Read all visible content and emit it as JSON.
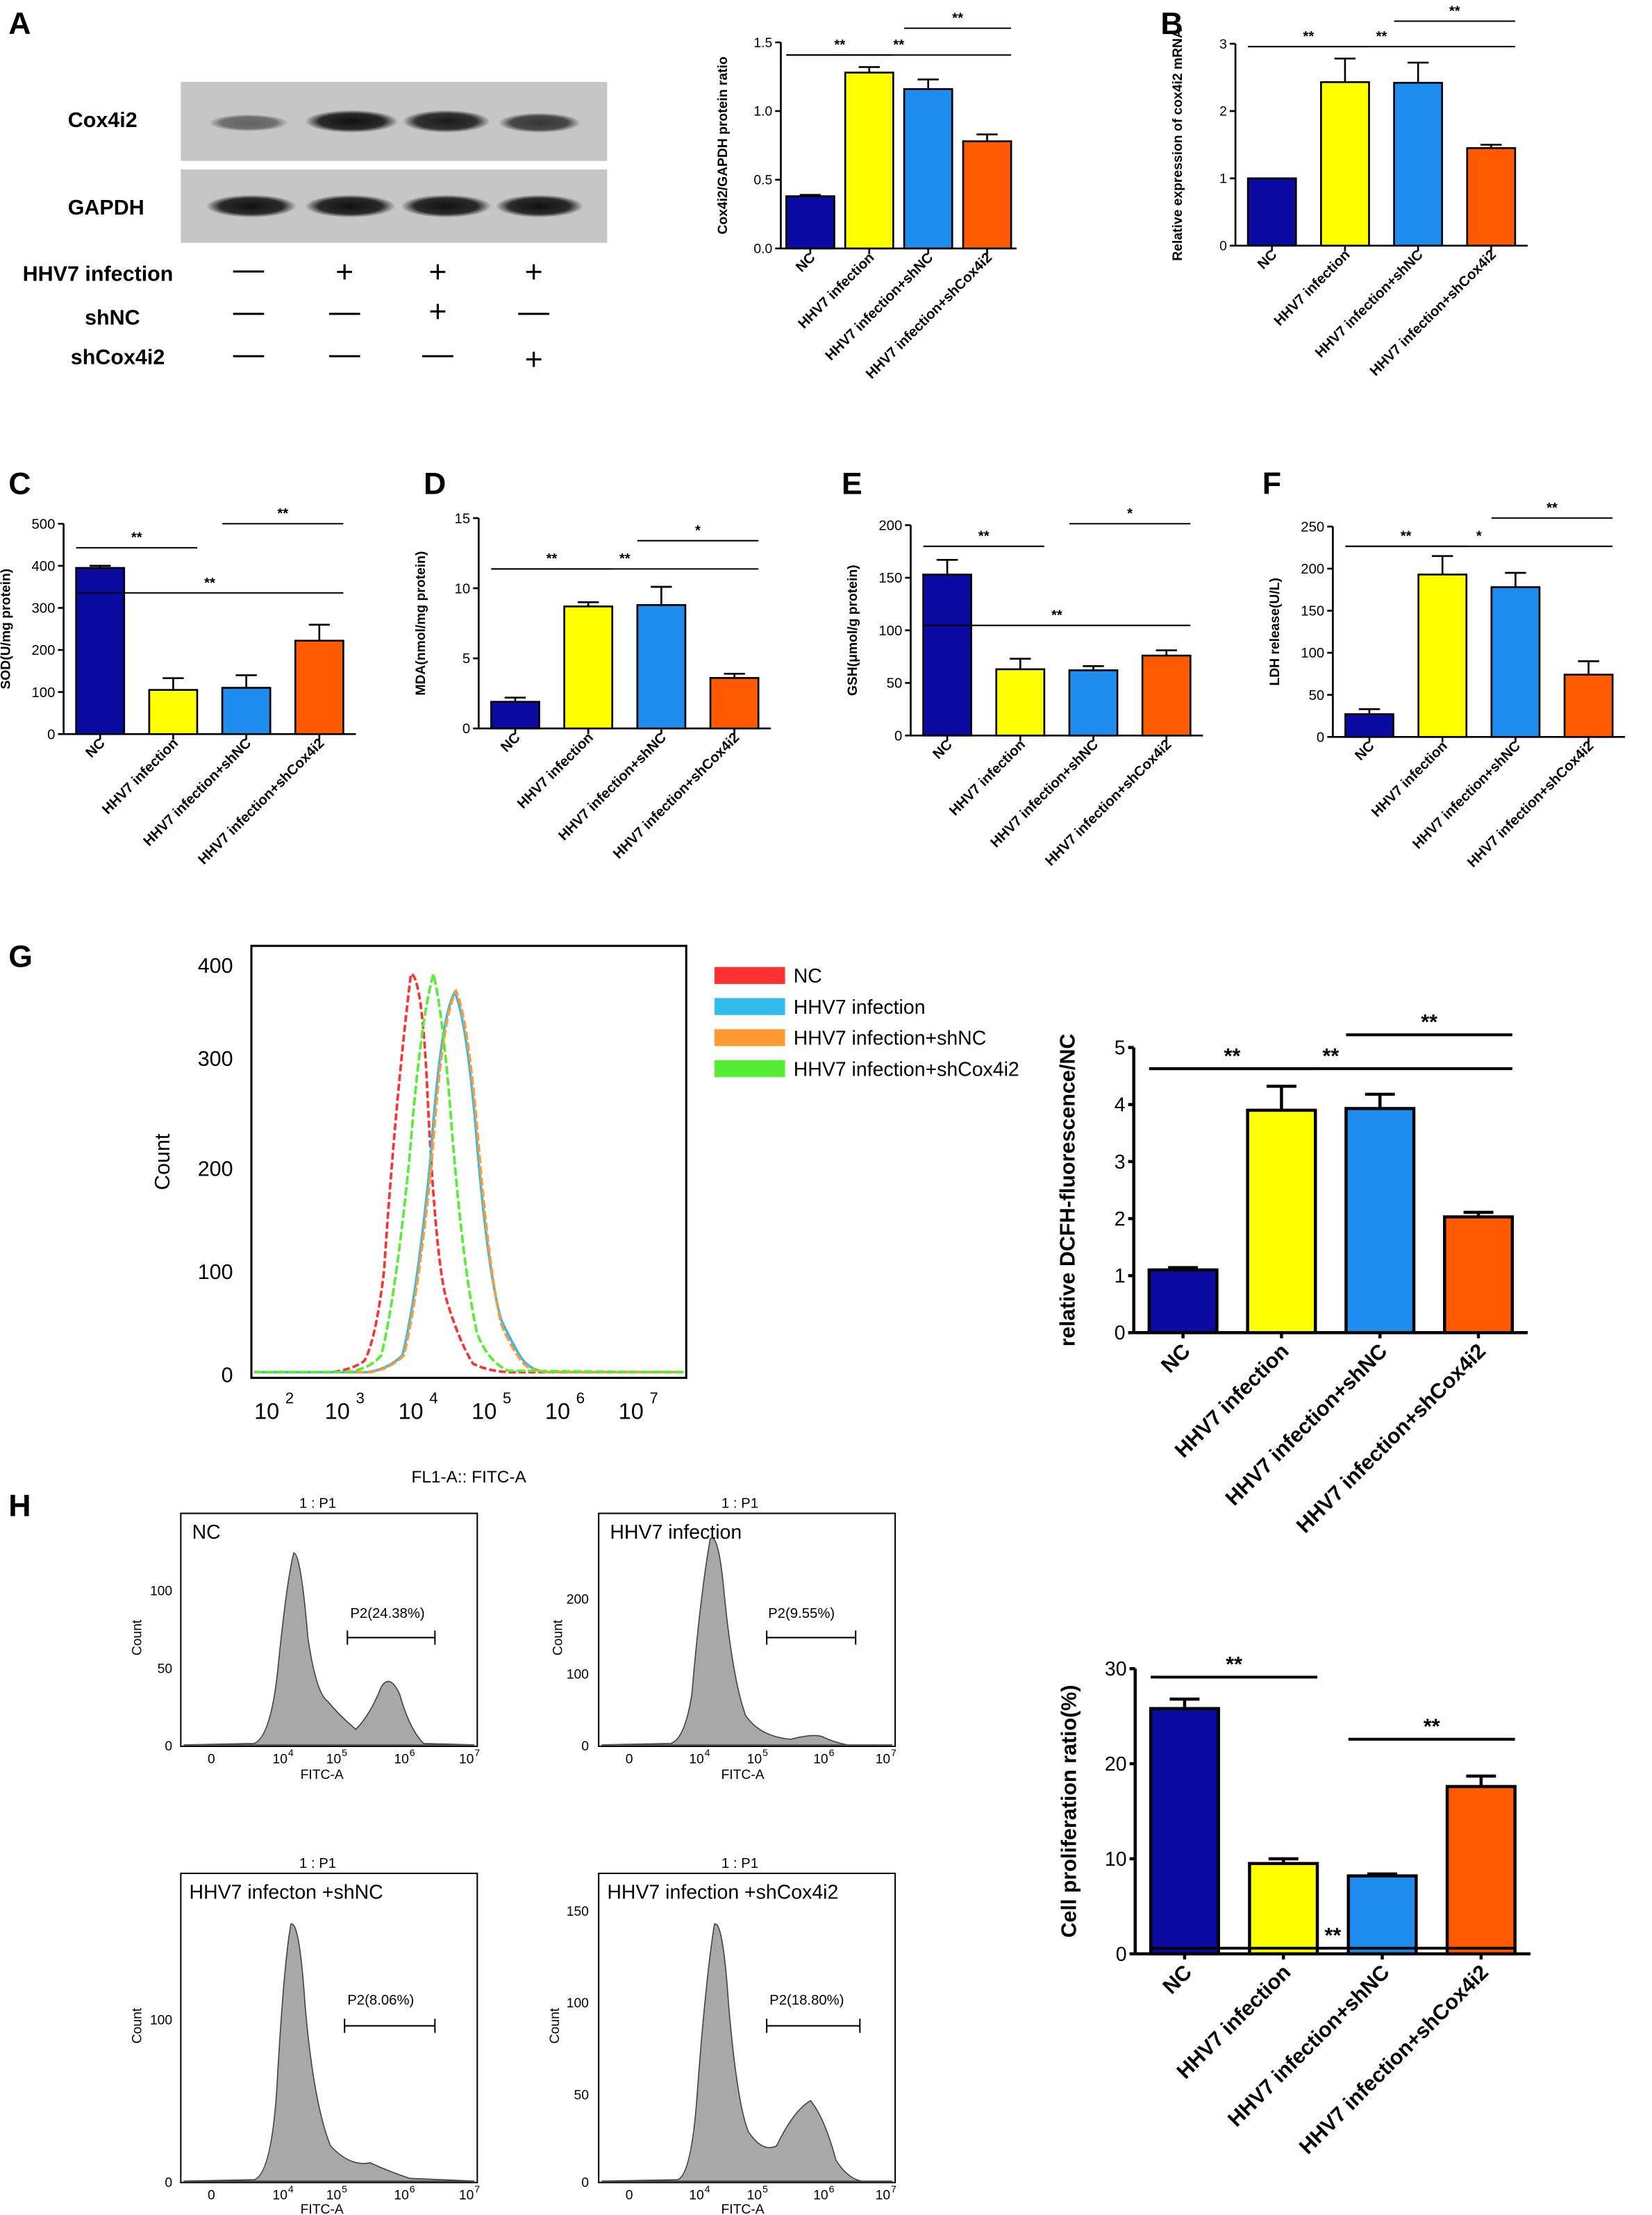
{
  "colors": {
    "NC": "#0b0ba3",
    "HHV7 infection": "#ffff00",
    "HHV7 infection+shNC": "#1f8cf0",
    "HHV7 infection+shCox4i2": "#ff5a00"
  },
  "panelA": {
    "letter": "A",
    "blot_labels": [
      "Cox4i2",
      "GAPDH"
    ],
    "rows": [
      {
        "label": "HHV7 infection",
        "signs": [
          "—",
          "+",
          "+",
          "+"
        ]
      },
      {
        "label": "shNC",
        "signs": [
          "—",
          "—",
          "+",
          "—"
        ]
      },
      {
        "label": "shCox4i2",
        "signs": [
          "—",
          "—",
          "—",
          "+"
        ]
      }
    ]
  },
  "panelB": {
    "letter": "B"
  },
  "panelC": {
    "letter": "C"
  },
  "panelD": {
    "letter": "D"
  },
  "panelE": {
    "letter": "E"
  },
  "panelF": {
    "letter": "F"
  },
  "panelG": {
    "letter": "G",
    "ylabel": "Count",
    "xlabel": "FL1-A:: FITC-A",
    "yticks": [
      "0",
      "100",
      "200",
      "300",
      "400"
    ],
    "xticks": [
      "10",
      "10",
      "10",
      "10",
      "10",
      "10"
    ],
    "xexp": [
      "2",
      "3",
      "4",
      "5",
      "6",
      "7"
    ],
    "legend": [
      {
        "name": "NC",
        "color": "#ff3030"
      },
      {
        "name": "HHV7 infection",
        "color": "#33bbee"
      },
      {
        "name": "HHV7 infection+shNC",
        "color": "#ff9933"
      },
      {
        "name": "HHV7 infection+shCox4i2",
        "color": "#55ee33"
      }
    ]
  },
  "panelH": {
    "letter": "H",
    "histograms": [
      {
        "title": "1 : P1",
        "label": "NC",
        "gate": "P2(24.38%)",
        "yticks": [
          "0",
          "50",
          "100"
        ],
        "xlabel": "FITC-A"
      },
      {
        "title": "1 : P1",
        "label": "HHV7 infection",
        "gate": "P2(9.55%)",
        "yticks": [
          "0",
          "100",
          "200"
        ],
        "xlabel": "FITC-A"
      },
      {
        "title": "1 : P1",
        "label": "HHV7 infecton +shNC",
        "gate": "P2(8.06%)",
        "yticks": [
          "0",
          "100"
        ],
        "xlabel": "FITC-A"
      },
      {
        "title": "1 : P1",
        "label": "HHV7 infection +shCox4i2",
        "gate": "P2(18.80%)",
        "yticks": [
          "0",
          "50",
          "100",
          "150"
        ],
        "xlabel": "FITC-A"
      }
    ],
    "hist_xticks": [
      "0",
      "10",
      "10",
      "10",
      "10"
    ],
    "hist_xexp": [
      "",
      "4",
      "5",
      "6",
      "7"
    ]
  },
  "chart_data": [
    {
      "id": "A",
      "type": "bar",
      "categories": [
        "NC",
        "HHV7 infection",
        "HHV7 infection+shNC",
        "HHV7 infection+shCox4i2"
      ],
      "values": [
        0.38,
        1.28,
        1.16,
        0.78
      ],
      "errors": [
        0.01,
        0.04,
        0.07,
        0.05
      ],
      "ylabel": "Cox4i2/GAPDH protein ratio",
      "ylim": [
        0,
        1.5
      ],
      "yticks": [
        0.0,
        0.5,
        1.0,
        1.5
      ],
      "ytick_labels": [
        "0.0",
        "0.5",
        "1.0",
        "1.5"
      ],
      "significance": [
        {
          "from": 0,
          "to": 1,
          "label": "**"
        },
        {
          "from": 2,
          "to": 3,
          "label": "**"
        },
        {
          "from": 0,
          "to": 3,
          "label": "**"
        }
      ]
    },
    {
      "id": "B",
      "type": "bar",
      "categories": [
        "NC",
        "HHV7 infection",
        "HHV7 infection+shNC",
        "HHV7 infection+shCox4i2"
      ],
      "values": [
        1.0,
        2.43,
        2.42,
        1.45
      ],
      "errors": [
        0.0,
        0.35,
        0.3,
        0.05
      ],
      "ylabel": "Relative expression of cox4i2 mRNA",
      "ylim": [
        0,
        3
      ],
      "yticks": [
        0,
        1,
        2,
        3
      ],
      "ytick_labels": [
        "0",
        "1",
        "2",
        "3"
      ],
      "significance": [
        {
          "from": 0,
          "to": 1,
          "label": "**"
        },
        {
          "from": 2,
          "to": 3,
          "label": "**"
        },
        {
          "from": 0,
          "to": 3,
          "label": "**"
        }
      ]
    },
    {
      "id": "C",
      "type": "bar",
      "categories": [
        "NC",
        "HHV7 infection",
        "HHV7 infection+shNC",
        "HHV7 infection+shCox4i2"
      ],
      "values": [
        395,
        105,
        110,
        222
      ],
      "errors": [
        5,
        28,
        30,
        38
      ],
      "ylabel": "SOD(U/mg protein)",
      "ylim": [
        0,
        500
      ],
      "yticks": [
        0,
        100,
        200,
        300,
        400,
        500
      ],
      "ytick_labels": [
        "0",
        "100",
        "200",
        "300",
        "400",
        "500"
      ],
      "significance": [
        {
          "from": 0,
          "to": 1,
          "label": "**"
        },
        {
          "from": 2,
          "to": 3,
          "label": "**"
        },
        {
          "from": 0,
          "to": 3,
          "label": "**"
        }
      ]
    },
    {
      "id": "D",
      "type": "bar",
      "categories": [
        "NC",
        "HHV7 infection",
        "HHV7 infection+shNC",
        "HHV7 infection+shCox4i2"
      ],
      "values": [
        1.9,
        8.7,
        8.8,
        3.6
      ],
      "errors": [
        0.3,
        0.3,
        1.3,
        0.3
      ],
      "ylabel": "MDA(nmol/mg protein)",
      "ylim": [
        0,
        15
      ],
      "yticks": [
        0,
        5,
        10,
        15
      ],
      "ytick_labels": [
        "0",
        "5",
        "10",
        "15"
      ],
      "significance": [
        {
          "from": 0,
          "to": 1,
          "label": "**"
        },
        {
          "from": 2,
          "to": 3,
          "label": "*"
        },
        {
          "from": 0,
          "to": 3,
          "label": "**"
        }
      ]
    },
    {
      "id": "E",
      "type": "bar",
      "categories": [
        "NC",
        "HHV7 infection",
        "HHV7 infection+shNC",
        "HHV7 infection+shCox4i2"
      ],
      "values": [
        153,
        63,
        62,
        76
      ],
      "errors": [
        14,
        10,
        4,
        5
      ],
      "ylabel": "GSH(μmol/g protein)",
      "ylim": [
        0,
        200
      ],
      "yticks": [
        0,
        50,
        100,
        150,
        200
      ],
      "ytick_labels": [
        "0",
        "50",
        "100",
        "150",
        "200"
      ],
      "significance": [
        {
          "from": 0,
          "to": 1,
          "label": "**"
        },
        {
          "from": 2,
          "to": 3,
          "label": "*"
        },
        {
          "from": 0,
          "to": 3,
          "label": "**"
        }
      ]
    },
    {
      "id": "F",
      "type": "bar",
      "categories": [
        "NC",
        "HHV7 infection",
        "HHV7 infection+shNC",
        "HHV7 infection+shCox4i2"
      ],
      "values": [
        27,
        193,
        178,
        74
      ],
      "errors": [
        6,
        22,
        17,
        16
      ],
      "ylabel": "LDH release(U/L)",
      "ylim": [
        0,
        250
      ],
      "yticks": [
        0,
        50,
        100,
        150,
        200,
        250
      ],
      "ytick_labels": [
        "0",
        "50",
        "100",
        "150",
        "200",
        "250"
      ],
      "significance": [
        {
          "from": 0,
          "to": 1,
          "label": "**"
        },
        {
          "from": 2,
          "to": 3,
          "label": "**"
        },
        {
          "from": 0,
          "to": 3,
          "label": "*"
        }
      ]
    },
    {
      "id": "G",
      "type": "bar",
      "categories": [
        "NC",
        "HHV7 infection",
        "HHV7 infection+shNC",
        "HHV7 infection+shCox4i2"
      ],
      "values": [
        1.1,
        3.9,
        3.93,
        2.03
      ],
      "errors": [
        0.04,
        0.42,
        0.25,
        0.08
      ],
      "ylabel": "relative DCFH-fluorescence/NC",
      "ylim": [
        0,
        5
      ],
      "yticks": [
        0,
        1,
        2,
        3,
        4,
        5
      ],
      "ytick_labels": [
        "0",
        "1",
        "2",
        "3",
        "4",
        "5"
      ],
      "significance": [
        {
          "from": 0,
          "to": 1,
          "label": "**"
        },
        {
          "from": 2,
          "to": 3,
          "label": "**"
        },
        {
          "from": 0,
          "to": 3,
          "label": "**"
        }
      ]
    },
    {
      "id": "H",
      "type": "bar",
      "categories": [
        "NC",
        "HHV7 infection",
        "HHV7 infection+shNC",
        "HHV7 infection+shCox4i2"
      ],
      "values": [
        25.8,
        9.5,
        8.2,
        17.6
      ],
      "errors": [
        1.0,
        0.5,
        0.2,
        1.1
      ],
      "ylabel": "Cell proliferation ratio(%)",
      "ylim": [
        0,
        30
      ],
      "yticks": [
        0,
        10,
        20,
        30
      ],
      "ytick_labels": [
        "0",
        "10",
        "20",
        "30"
      ],
      "significance": [
        {
          "from": 0,
          "to": 1,
          "label": "**"
        },
        {
          "from": 2,
          "to": 3,
          "label": "**"
        },
        {
          "from": 0,
          "to": 3,
          "label": "**"
        }
      ]
    }
  ]
}
